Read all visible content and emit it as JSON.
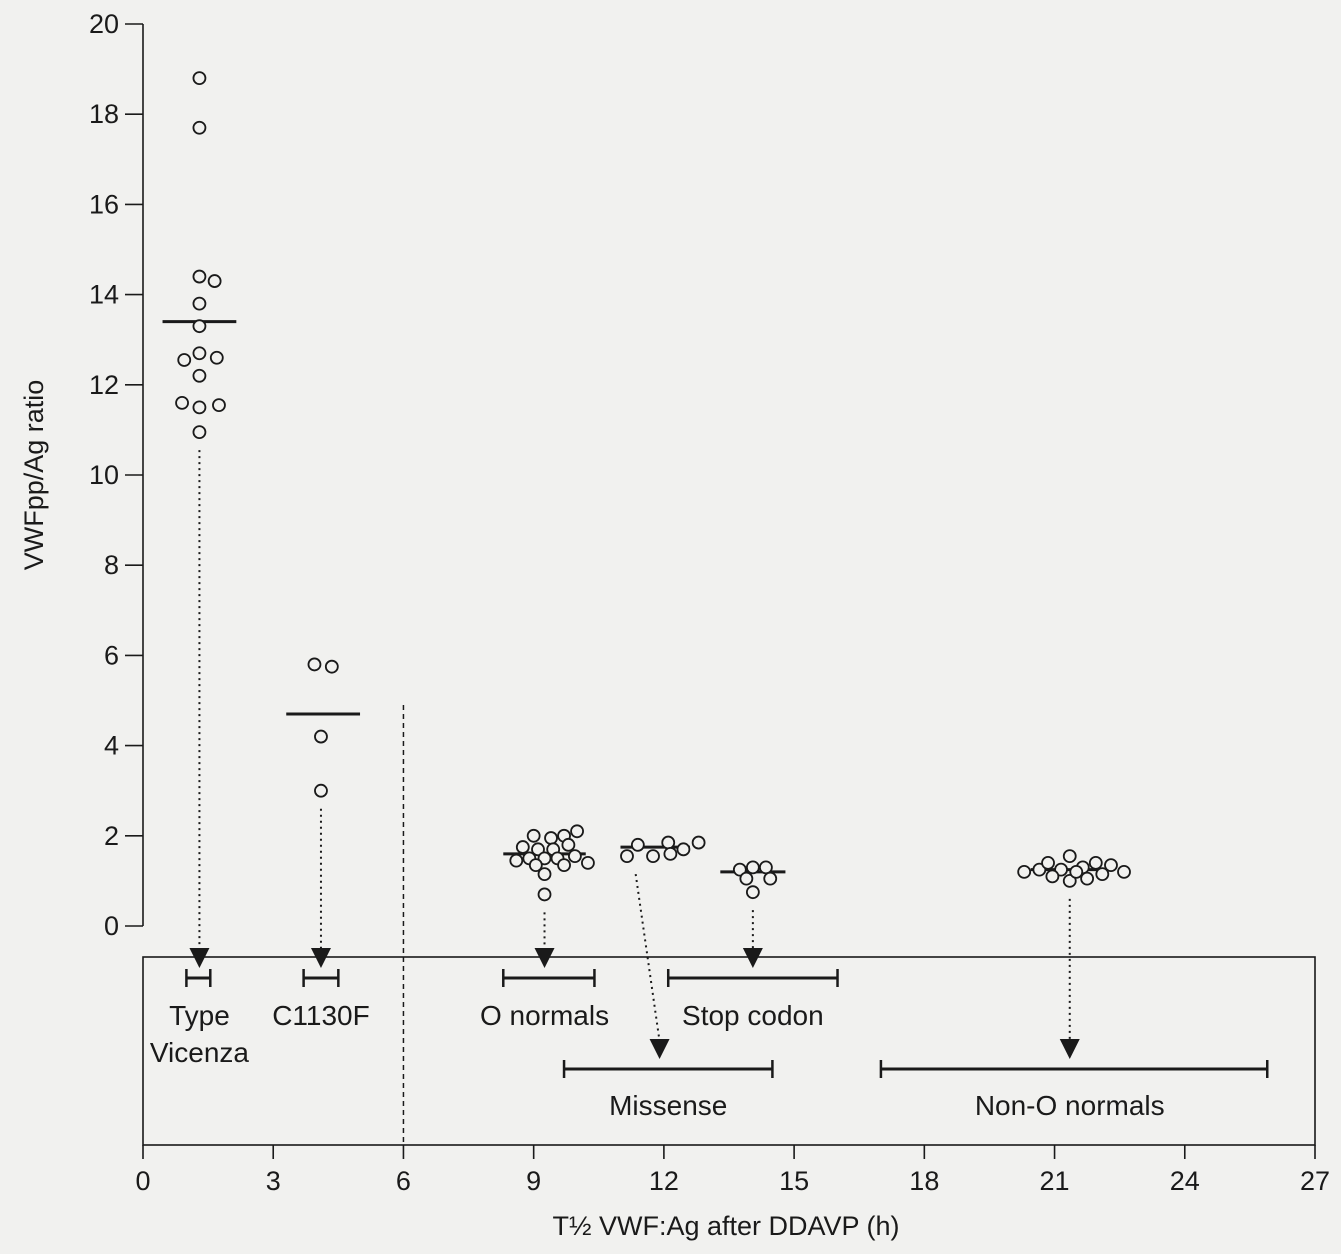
{
  "chart_data": {
    "type": "scatter",
    "title": "",
    "xlabel": "T½ VWF:Ag after DDAVP (h)",
    "ylabel": "VWFpp/Ag ratio",
    "xlim": [
      0,
      27
    ],
    "ylim": [
      0,
      20
    ],
    "xticks": [
      0,
      3,
      6,
      9,
      12,
      15,
      18,
      21,
      24,
      27
    ],
    "yticks": [
      0,
      2,
      4,
      6,
      8,
      10,
      12,
      14,
      16,
      18,
      20
    ],
    "grid": false,
    "divider_x": 6,
    "colors": {
      "marker_fill": "#f1f1ef",
      "ink": "#1a1a1a",
      "background": "#f1f1ef"
    },
    "series": [
      {
        "group": "type-vicenza",
        "label_lines": [
          "Type",
          "Vicenza"
        ],
        "row": 1,
        "x": 1.3,
        "mean": 13.4,
        "range": [
          1.0,
          1.55
        ],
        "points": [
          [
            1.3,
            18.8
          ],
          [
            1.3,
            17.7
          ],
          [
            1.3,
            14.4
          ],
          [
            1.65,
            14.3
          ],
          [
            1.3,
            13.8
          ],
          [
            1.3,
            13.3
          ],
          [
            0.95,
            12.55
          ],
          [
            1.3,
            12.7
          ],
          [
            1.7,
            12.6
          ],
          [
            1.3,
            12.2
          ],
          [
            0.9,
            11.6
          ],
          [
            1.3,
            11.5
          ],
          [
            1.75,
            11.55
          ],
          [
            1.3,
            10.95
          ]
        ]
      },
      {
        "group": "c1130f",
        "label_lines": [
          "C1130F"
        ],
        "row": 1,
        "x": 4.1,
        "mean": 4.7,
        "range": [
          3.7,
          4.5
        ],
        "points": [
          [
            3.95,
            5.8
          ],
          [
            4.35,
            5.75
          ],
          [
            4.1,
            4.2
          ],
          [
            4.1,
            3.0
          ]
        ]
      },
      {
        "group": "o-normals",
        "label_lines": [
          "O normals"
        ],
        "row": 1,
        "x": 9.25,
        "mean": 1.6,
        "range": [
          8.3,
          10.4
        ],
        "points": [
          [
            9.0,
            2.0
          ],
          [
            9.4,
            1.95
          ],
          [
            9.7,
            2.0
          ],
          [
            10.0,
            2.1
          ],
          [
            8.75,
            1.75
          ],
          [
            9.1,
            1.7
          ],
          [
            9.45,
            1.7
          ],
          [
            9.8,
            1.8
          ],
          [
            8.6,
            1.45
          ],
          [
            8.9,
            1.5
          ],
          [
            9.25,
            1.5
          ],
          [
            9.55,
            1.5
          ],
          [
            9.95,
            1.55
          ],
          [
            10.25,
            1.4
          ],
          [
            9.05,
            1.35
          ],
          [
            9.7,
            1.35
          ],
          [
            9.25,
            1.15
          ],
          [
            9.25,
            0.7
          ]
        ]
      },
      {
        "group": "missense",
        "label_lines": [
          "Missense"
        ],
        "row": 2,
        "x": 11.8,
        "mean": 1.75,
        "range": [
          9.7,
          14.5
        ],
        "points": [
          [
            11.4,
            1.8
          ],
          [
            11.75,
            1.55
          ],
          [
            12.1,
            1.85
          ],
          [
            12.45,
            1.7
          ],
          [
            12.8,
            1.85
          ],
          [
            11.15,
            1.55
          ],
          [
            12.15,
            1.6
          ]
        ]
      },
      {
        "group": "stop-codon",
        "label_lines": [
          "Stop codon"
        ],
        "row": 1,
        "x": 14.05,
        "mean": 1.2,
        "range": [
          12.1,
          16.0
        ],
        "points": [
          [
            13.75,
            1.25
          ],
          [
            14.05,
            1.3
          ],
          [
            14.35,
            1.3
          ],
          [
            13.9,
            1.05
          ],
          [
            14.45,
            1.05
          ],
          [
            14.05,
            0.75
          ]
        ]
      },
      {
        "group": "non-o-normals",
        "label_lines": [
          "Non-O normals"
        ],
        "row": 2,
        "x": 21.35,
        "mean": 1.25,
        "range": [
          17.0,
          25.9
        ],
        "points": [
          [
            20.3,
            1.2
          ],
          [
            20.65,
            1.25
          ],
          [
            20.85,
            1.4
          ],
          [
            21.15,
            1.25
          ],
          [
            21.35,
            1.55
          ],
          [
            21.65,
            1.3
          ],
          [
            21.95,
            1.4
          ],
          [
            22.3,
            1.35
          ],
          [
            22.6,
            1.2
          ],
          [
            20.95,
            1.1
          ],
          [
            21.35,
            1.0
          ],
          [
            21.75,
            1.05
          ],
          [
            22.1,
            1.15
          ],
          [
            21.5,
            1.2
          ]
        ]
      }
    ]
  }
}
